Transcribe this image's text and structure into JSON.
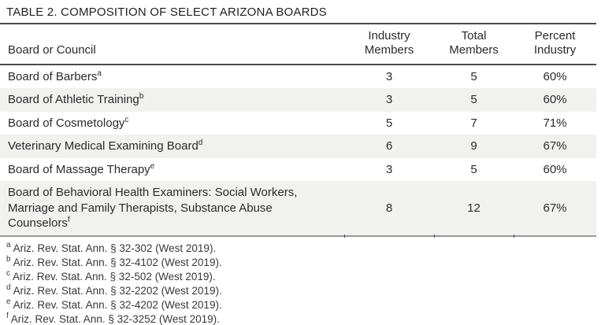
{
  "title": "TABLE 2. COMPOSITION OF SELECT ARIZONA BOARDS",
  "colors": {
    "rule_dark": "#4c4c4e",
    "rule_light": "#989898",
    "row_alt_background": "#f1f1f0",
    "text": "#2c2a2b"
  },
  "table": {
    "columns": {
      "board": "Board or Council",
      "industry_members": "Industry Members",
      "total_members": "Total Members",
      "percent_industry": "Percent Industry"
    },
    "rows": [
      {
        "board": "Board of Barbers",
        "sup": "a",
        "industry_members": "3",
        "total_members": "5",
        "percent_industry": "60%"
      },
      {
        "board": "Board of Athletic Training",
        "sup": "b",
        "industry_members": "3",
        "total_members": "5",
        "percent_industry": "60%"
      },
      {
        "board": "Board of Cosmetology",
        "sup": "c",
        "industry_members": "5",
        "total_members": "7",
        "percent_industry": "71%"
      },
      {
        "board": "Veterinary Medical Examining Board",
        "sup": "d",
        "industry_members": "6",
        "total_members": "9",
        "percent_industry": "67%"
      },
      {
        "board": "Board of Massage Therapy",
        "sup": "e",
        "industry_members": "3",
        "total_members": "5",
        "percent_industry": "60%"
      },
      {
        "board": "Board of Behavioral Health Examiners: Social Workers, Marriage and Family Therapists, Substance Abuse Counselors",
        "sup": "f",
        "industry_members": "8",
        "total_members": "12",
        "percent_industry": "67%"
      }
    ]
  },
  "footnotes": [
    {
      "marker": "a",
      "text": "Ariz. Rev. Stat. Ann. § 32-302 (West 2019)."
    },
    {
      "marker": "b",
      "text": "Ariz. Rev. Stat. Ann. § 32-4102 (West 2019)."
    },
    {
      "marker": "c",
      "text": "Ariz. Rev. Stat. Ann. § 32-502 (West 2019)."
    },
    {
      "marker": "d",
      "text": "Ariz. Rev. Stat. Ann. § 32-2202 (West 2019)."
    },
    {
      "marker": "e",
      "text": "Ariz. Rev. Stat. Ann. § 32-4202 (West 2019)."
    },
    {
      "marker": "f",
      "text": "Ariz. Rev. Stat. Ann. § 32-3252 (West 2019)."
    }
  ]
}
